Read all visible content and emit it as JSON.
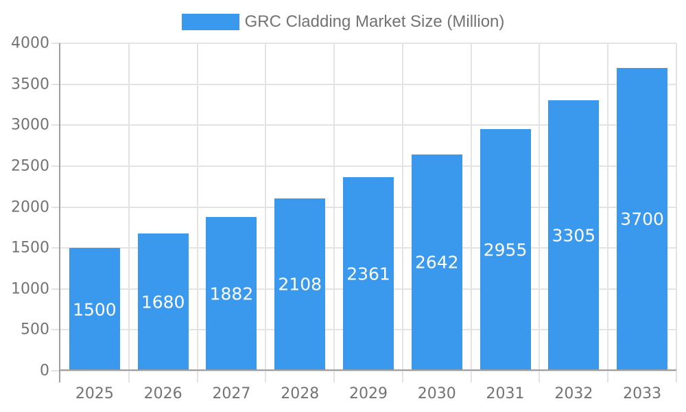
{
  "chart_data": {
    "type": "bar",
    "title": "",
    "categories": [
      "2025",
      "2026",
      "2027",
      "2028",
      "2029",
      "2030",
      "2031",
      "2032",
      "2033"
    ],
    "series": [
      {
        "name": "GRC Cladding Market Size (Million)",
        "values": [
          1500,
          1680,
          1882,
          2108,
          2361,
          2642,
          2955,
          3305,
          3700
        ],
        "color": "#3A99EC"
      }
    ],
    "xlabel": "",
    "ylabel": "",
    "ylim": [
      0,
      4000
    ],
    "ytick_step": 500,
    "yticks": [
      0,
      500,
      1000,
      1500,
      2000,
      2500,
      3000,
      3500,
      4000
    ],
    "ytick_labels": [
      "0",
      "500",
      "1000",
      "1500",
      "2000",
      "2500",
      "3000",
      "3500",
      "4000"
    ],
    "grid": true,
    "legend_position": "top",
    "value_labels": {
      "visible": true,
      "position": "inside-center",
      "color": "#FFFFFF"
    }
  },
  "legend": {
    "label": "GRC Cladding Market Size (Million)"
  },
  "style": {
    "bar_color": "#3A99EC",
    "value_label_color": "#FFFFFF",
    "tick_label_color": "#737373",
    "legend_text_color": "#737373",
    "gridline_color": "#E3E3E3",
    "axis_line_color": "#9E9E9E",
    "background_color": "#FFFFFF"
  }
}
